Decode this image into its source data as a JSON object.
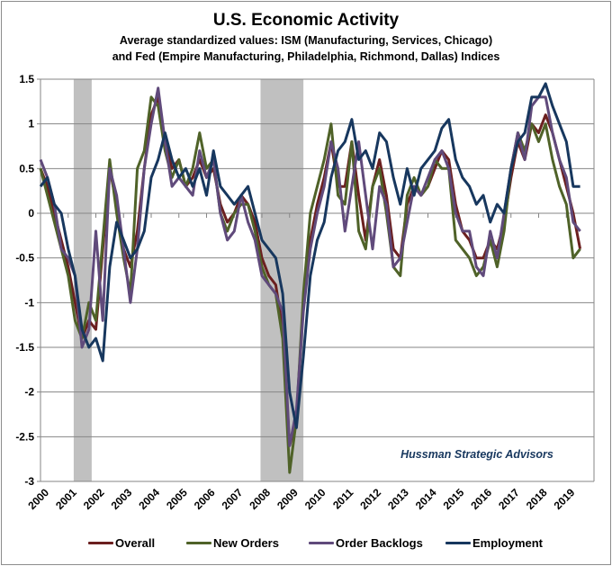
{
  "chart_data": {
    "type": "line",
    "title": "U.S. Economic Activity",
    "subtitle_lines": [
      "Average standardized values: ISM (Manufacturing, Services, Chicago)",
      "and Fed (Empire Manufacturing, Philadelphia, Richmond, Dallas) Indices"
    ],
    "xlabel": "",
    "ylabel": "",
    "ylim": [
      -3,
      1.5
    ],
    "xlim": [
      2000,
      2020
    ],
    "yticks": [
      "1.5",
      "1",
      "0.5",
      "0",
      "-0.5",
      "-1",
      "-1.5",
      "-2",
      "-2.5",
      "-3"
    ],
    "xticks": [
      "2000",
      "2001",
      "2002",
      "2003",
      "2004",
      "2005",
      "2006",
      "2007",
      "2008",
      "2009",
      "2010",
      "2011",
      "2012",
      "2013",
      "2014",
      "2015",
      "2016",
      "2017",
      "2018",
      "2019"
    ],
    "grid": true,
    "legend_position": "bottom",
    "annotation": "Hussman Strategic Advisors",
    "recession_shading": [
      [
        2001.2,
        2001.85
      ],
      [
        2007.95,
        2009.5
      ]
    ],
    "x_start": 2000,
    "x_step": 0.25,
    "series": [
      {
        "name": "Overall",
        "color": "#6B1F1F",
        "values": [
          0.5,
          0.3,
          0.0,
          -0.3,
          -0.6,
          -1.0,
          -1.4,
          -1.2,
          -1.3,
          -0.4,
          0.5,
          0.1,
          -0.4,
          -0.6,
          -0.2,
          0.5,
          1.1,
          1.3,
          0.8,
          0.5,
          0.6,
          0.3,
          0.4,
          0.6,
          0.4,
          0.5,
          0.1,
          -0.1,
          0.0,
          0.2,
          0.1,
          -0.1,
          -0.5,
          -0.7,
          -0.8,
          -1.3,
          -2.6,
          -2.3,
          -1.0,
          -0.3,
          0.1,
          0.4,
          0.8,
          0.3,
          0.3,
          0.8,
          0.2,
          -0.3,
          0.3,
          0.6,
          0.2,
          -0.4,
          -0.5,
          0.1,
          0.3,
          0.2,
          0.3,
          0.5,
          0.7,
          0.6,
          0.1,
          -0.2,
          -0.3,
          -0.5,
          -0.5,
          -0.3,
          -0.4,
          -0.1,
          0.4,
          0.8,
          0.6,
          1.0,
          0.9,
          1.1,
          0.9,
          0.6,
          0.3,
          0.0,
          -0.4
        ]
      },
      {
        "name": "New Orders",
        "color": "#4F6228",
        "values": [
          0.5,
          0.2,
          -0.1,
          -0.4,
          -0.7,
          -1.2,
          -1.4,
          -1.0,
          -1.2,
          -0.3,
          0.6,
          0.0,
          -0.5,
          -0.9,
          0.5,
          0.7,
          1.3,
          1.2,
          0.7,
          0.4,
          0.6,
          0.3,
          0.5,
          0.9,
          0.5,
          0.6,
          0.0,
          -0.2,
          0.0,
          0.1,
          0.1,
          -0.2,
          -0.6,
          -0.8,
          -0.9,
          -1.4,
          -2.9,
          -2.3,
          -0.9,
          0.0,
          0.3,
          0.6,
          1.0,
          0.2,
          0.1,
          0.8,
          -0.2,
          -0.4,
          0.3,
          0.5,
          0.0,
          -0.6,
          -0.7,
          0.2,
          0.4,
          0.2,
          0.3,
          0.6,
          0.5,
          0.5,
          -0.3,
          -0.4,
          -0.5,
          -0.7,
          -0.6,
          -0.3,
          -0.6,
          -0.2,
          0.5,
          0.9,
          0.7,
          1.0,
          0.8,
          1.0,
          0.6,
          0.3,
          0.1,
          -0.5,
          -0.4
        ]
      },
      {
        "name": "Order Backlogs",
        "color": "#604A7B",
        "values": [
          0.6,
          0.4,
          0.1,
          -0.4,
          -0.5,
          -0.7,
          -1.5,
          -1.3,
          -0.2,
          -1.2,
          0.5,
          0.2,
          -0.4,
          -1.0,
          -0.4,
          0.5,
          1.0,
          1.4,
          0.8,
          0.3,
          0.4,
          0.3,
          0.2,
          0.7,
          0.4,
          0.6,
          0.0,
          -0.3,
          -0.2,
          0.2,
          -0.1,
          -0.3,
          -0.7,
          -0.8,
          -0.9,
          -1.1,
          -2.6,
          -2.2,
          -1.1,
          -0.4,
          0.0,
          0.3,
          0.8,
          0.5,
          -0.2,
          0.3,
          0.8,
          0.2,
          -0.4,
          0.3,
          0.1,
          -0.6,
          -0.5,
          -0.1,
          0.3,
          0.2,
          0.4,
          0.6,
          0.7,
          0.5,
          0.0,
          -0.2,
          -0.2,
          -0.6,
          -0.7,
          -0.2,
          -0.5,
          0.0,
          0.5,
          0.9,
          0.6,
          1.2,
          1.3,
          1.3,
          0.9,
          0.6,
          0.4,
          -0.1,
          -0.2
        ]
      },
      {
        "name": "Employment",
        "color": "#17375E",
        "values": [
          0.3,
          0.4,
          0.1,
          0.0,
          -0.4,
          -0.7,
          -1.3,
          -1.5,
          -1.4,
          -1.65,
          -0.6,
          -0.1,
          -0.3,
          -0.5,
          -0.4,
          -0.2,
          0.4,
          0.6,
          0.9,
          0.6,
          0.4,
          0.5,
          0.3,
          0.5,
          0.2,
          0.7,
          0.3,
          0.2,
          0.1,
          0.2,
          0.3,
          0.0,
          -0.3,
          -0.4,
          -0.5,
          -0.9,
          -2.0,
          -2.4,
          -1.6,
          -0.7,
          -0.3,
          -0.1,
          0.4,
          0.7,
          0.8,
          1.05,
          0.6,
          0.7,
          0.5,
          0.9,
          0.8,
          0.4,
          0.1,
          0.5,
          0.2,
          0.5,
          0.6,
          0.7,
          0.95,
          1.05,
          0.6,
          0.4,
          0.3,
          0.1,
          0.2,
          -0.1,
          0.1,
          0.0,
          0.5,
          0.8,
          0.9,
          1.3,
          1.3,
          1.45,
          1.2,
          1.0,
          0.8,
          0.3,
          0.3
        ]
      }
    ]
  }
}
